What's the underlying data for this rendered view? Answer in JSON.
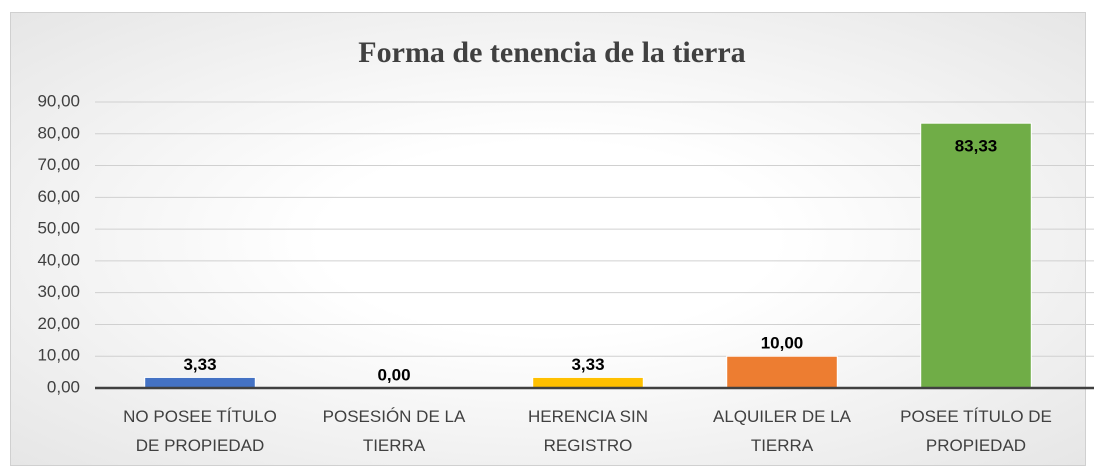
{
  "chart_data": {
    "type": "bar",
    "title": "Forma de tenencia de la tierra",
    "categories": [
      "NO POSEE TÍTULO DE PROPIEDAD",
      "POSESIÓN DE LA TIERRA",
      "HERENCIA SIN REGISTRO",
      "ALQUILER DE LA TIERRA",
      "POSEE TÍTULO DE PROPIEDAD"
    ],
    "values": [
      3.33,
      0,
      3.33,
      10,
      83.33
    ],
    "value_labels": [
      "3,33",
      "0,00",
      "3,33",
      "10,00",
      "83,33"
    ],
    "colors": [
      "#4472c4",
      "#a5a5a5",
      "#ffc000",
      "#ed7d31",
      "#70ad47"
    ],
    "ylim": [
      0,
      90
    ],
    "yticks": [
      {
        "value": 0,
        "label": "0,00"
      },
      {
        "value": 10,
        "label": "10,00"
      },
      {
        "value": 20,
        "label": "20,00"
      },
      {
        "value": 30,
        "label": "30,00"
      },
      {
        "value": 40,
        "label": "40,00"
      },
      {
        "value": 50,
        "label": "50,00"
      },
      {
        "value": 60,
        "label": "60,00"
      },
      {
        "value": 70,
        "label": "70,00"
      },
      {
        "value": 80,
        "label": "80,00"
      },
      {
        "value": 90,
        "label": "90,00"
      }
    ],
    "grid": true
  }
}
